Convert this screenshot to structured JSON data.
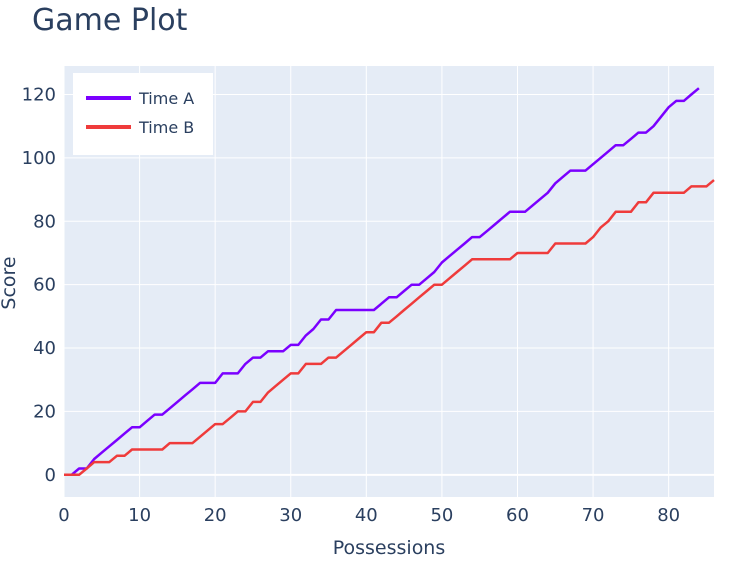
{
  "chart_data": {
    "type": "line",
    "title": "Game Plot",
    "xlabel": "Possessions",
    "ylabel": "Score",
    "xlim": [
      0,
      86
    ],
    "ylim": [
      -7,
      129
    ],
    "x_ticks": [
      0,
      10,
      20,
      30,
      40,
      50,
      60,
      70,
      80
    ],
    "y_ticks": [
      0,
      20,
      40,
      60,
      80,
      100,
      120
    ],
    "grid": true,
    "legend_position": "top-left",
    "series": [
      {
        "name": "Time A",
        "color": "#7b00ff",
        "points": [
          [
            0,
            0
          ],
          [
            1,
            0
          ],
          [
            2,
            2
          ],
          [
            3,
            2
          ],
          [
            4,
            5
          ],
          [
            5,
            7
          ],
          [
            6,
            9
          ],
          [
            7,
            11
          ],
          [
            8,
            13
          ],
          [
            9,
            15
          ],
          [
            10,
            15
          ],
          [
            11,
            17
          ],
          [
            12,
            19
          ],
          [
            13,
            19
          ],
          [
            14,
            21
          ],
          [
            15,
            23
          ],
          [
            16,
            25
          ],
          [
            17,
            27
          ],
          [
            18,
            29
          ],
          [
            19,
            29
          ],
          [
            20,
            29
          ],
          [
            21,
            32
          ],
          [
            22,
            32
          ],
          [
            23,
            32
          ],
          [
            24,
            35
          ],
          [
            25,
            37
          ],
          [
            26,
            37
          ],
          [
            27,
            39
          ],
          [
            28,
            39
          ],
          [
            29,
            39
          ],
          [
            30,
            41
          ],
          [
            31,
            41
          ],
          [
            32,
            44
          ],
          [
            33,
            46
          ],
          [
            34,
            49
          ],
          [
            35,
            49
          ],
          [
            36,
            52
          ],
          [
            37,
            52
          ],
          [
            38,
            52
          ],
          [
            39,
            52
          ],
          [
            40,
            52
          ],
          [
            41,
            52
          ],
          [
            42,
            54
          ],
          [
            43,
            56
          ],
          [
            44,
            56
          ],
          [
            45,
            58
          ],
          [
            46,
            60
          ],
          [
            47,
            60
          ],
          [
            48,
            62
          ],
          [
            49,
            64
          ],
          [
            50,
            67
          ],
          [
            51,
            69
          ],
          [
            52,
            71
          ],
          [
            53,
            73
          ],
          [
            54,
            75
          ],
          [
            55,
            75
          ],
          [
            56,
            77
          ],
          [
            57,
            79
          ],
          [
            58,
            81
          ],
          [
            59,
            83
          ],
          [
            60,
            83
          ],
          [
            61,
            83
          ],
          [
            62,
            85
          ],
          [
            63,
            87
          ],
          [
            64,
            89
          ],
          [
            65,
            92
          ],
          [
            66,
            94
          ],
          [
            67,
            96
          ],
          [
            68,
            96
          ],
          [
            69,
            96
          ],
          [
            70,
            98
          ],
          [
            71,
            100
          ],
          [
            72,
            102
          ],
          [
            73,
            104
          ],
          [
            74,
            104
          ],
          [
            75,
            106
          ],
          [
            76,
            108
          ],
          [
            77,
            108
          ],
          [
            78,
            110
          ],
          [
            79,
            113
          ],
          [
            80,
            116
          ],
          [
            81,
            118
          ],
          [
            82,
            118
          ],
          [
            83,
            120
          ],
          [
            84,
            122
          ]
        ]
      },
      {
        "name": "Time B",
        "color": "#ef3b3b",
        "points": [
          [
            0,
            0
          ],
          [
            1,
            0
          ],
          [
            2,
            0
          ],
          [
            3,
            2
          ],
          [
            4,
            4
          ],
          [
            5,
            4
          ],
          [
            6,
            4
          ],
          [
            7,
            6
          ],
          [
            8,
            6
          ],
          [
            9,
            8
          ],
          [
            10,
            8
          ],
          [
            11,
            8
          ],
          [
            12,
            8
          ],
          [
            13,
            8
          ],
          [
            14,
            10
          ],
          [
            15,
            10
          ],
          [
            16,
            10
          ],
          [
            17,
            10
          ],
          [
            18,
            12
          ],
          [
            19,
            14
          ],
          [
            20,
            16
          ],
          [
            21,
            16
          ],
          [
            22,
            18
          ],
          [
            23,
            20
          ],
          [
            24,
            20
          ],
          [
            25,
            23
          ],
          [
            26,
            23
          ],
          [
            27,
            26
          ],
          [
            28,
            28
          ],
          [
            29,
            30
          ],
          [
            30,
            32
          ],
          [
            31,
            32
          ],
          [
            32,
            35
          ],
          [
            33,
            35
          ],
          [
            34,
            35
          ],
          [
            35,
            37
          ],
          [
            36,
            37
          ],
          [
            37,
            39
          ],
          [
            38,
            41
          ],
          [
            39,
            43
          ],
          [
            40,
            45
          ],
          [
            41,
            45
          ],
          [
            42,
            48
          ],
          [
            43,
            48
          ],
          [
            44,
            50
          ],
          [
            45,
            52
          ],
          [
            46,
            54
          ],
          [
            47,
            56
          ],
          [
            48,
            58
          ],
          [
            49,
            60
          ],
          [
            50,
            60
          ],
          [
            51,
            62
          ],
          [
            52,
            64
          ],
          [
            53,
            66
          ],
          [
            54,
            68
          ],
          [
            55,
            68
          ],
          [
            56,
            68
          ],
          [
            57,
            68
          ],
          [
            58,
            68
          ],
          [
            59,
            68
          ],
          [
            60,
            70
          ],
          [
            61,
            70
          ],
          [
            62,
            70
          ],
          [
            63,
            70
          ],
          [
            64,
            70
          ],
          [
            65,
            73
          ],
          [
            66,
            73
          ],
          [
            67,
            73
          ],
          [
            68,
            73
          ],
          [
            69,
            73
          ],
          [
            70,
            75
          ],
          [
            71,
            78
          ],
          [
            72,
            80
          ],
          [
            73,
            83
          ],
          [
            74,
            83
          ],
          [
            75,
            83
          ],
          [
            76,
            86
          ],
          [
            77,
            86
          ],
          [
            78,
            89
          ],
          [
            79,
            89
          ],
          [
            80,
            89
          ],
          [
            81,
            89
          ],
          [
            82,
            89
          ],
          [
            83,
            91
          ],
          [
            84,
            91
          ],
          [
            85,
            91
          ],
          [
            86,
            93
          ]
        ]
      }
    ]
  }
}
